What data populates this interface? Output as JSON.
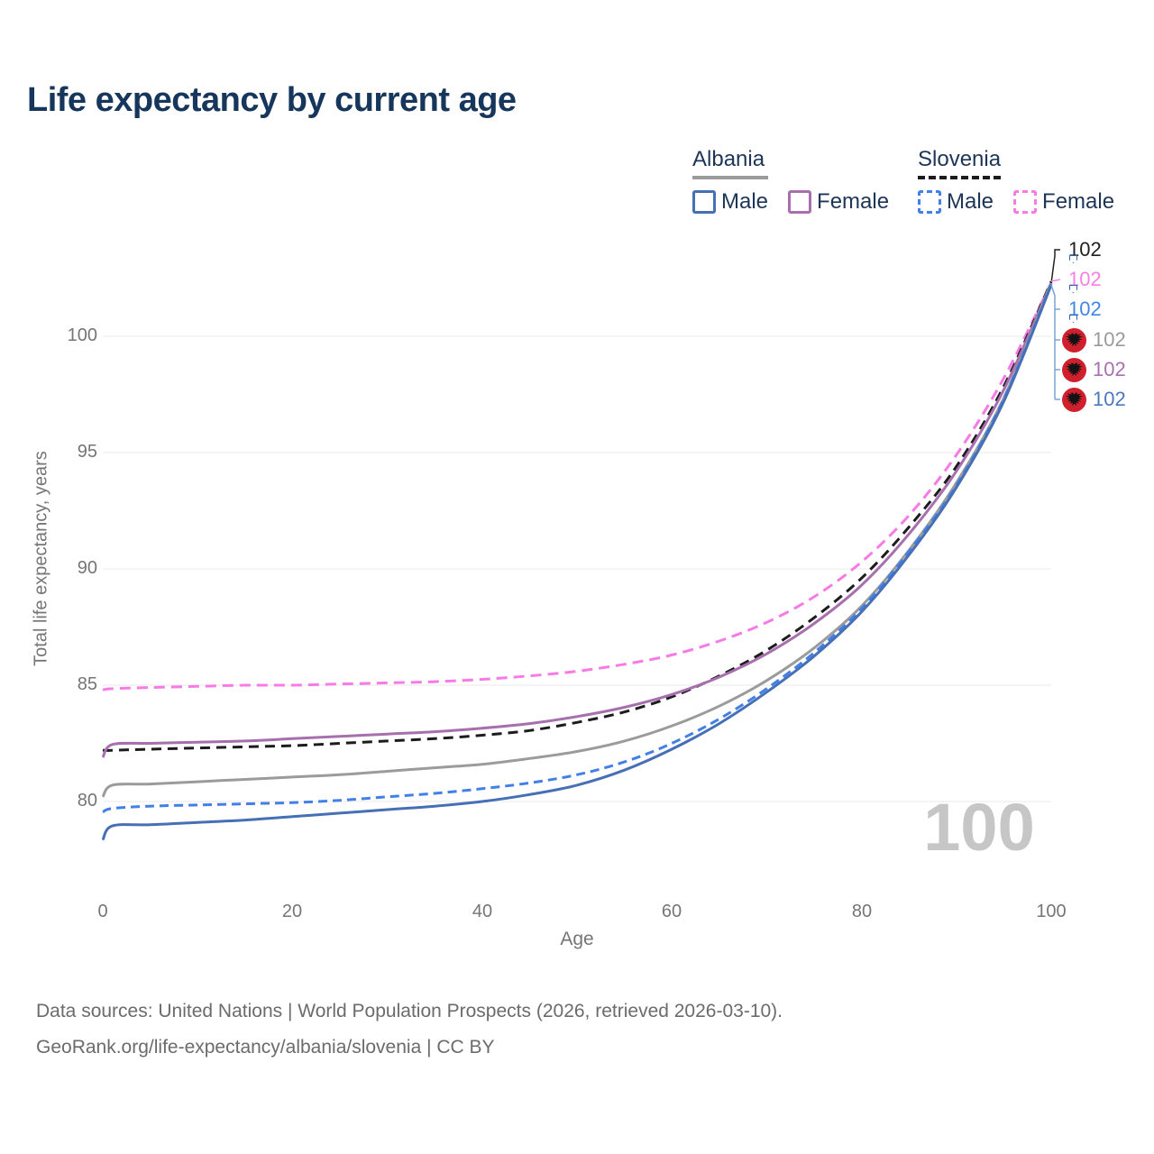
{
  "title": "Life expectancy by current age",
  "legend": {
    "albania": {
      "label": "Albania",
      "male_label": "Male",
      "female_label": "Female"
    },
    "slovenia": {
      "label": "Slovenia",
      "male_label": "Male",
      "female_label": "Female"
    }
  },
  "chart_data": {
    "type": "line",
    "title": "Life expectancy by current age",
    "xlabel": "Age",
    "ylabel": "Total life expectancy, years",
    "xlim": [
      0,
      100
    ],
    "ylim": [
      77.5,
      103.5
    ],
    "x_ticks": [
      0,
      20,
      40,
      60,
      80,
      100
    ],
    "y_ticks_top_to_bottom": [
      100,
      95,
      90,
      85,
      80
    ],
    "grid": "horizontal",
    "legend_position": "top-right",
    "watermark": "100",
    "ages": [
      0,
      1,
      5,
      10,
      15,
      20,
      25,
      30,
      35,
      40,
      45,
      50,
      55,
      60,
      65,
      70,
      75,
      80,
      85,
      90,
      95,
      100
    ],
    "series": [
      {
        "id": "slovenia-female",
        "country": "Slovenia",
        "sex": "Female",
        "style": "dashed",
        "color": "#f87ae6",
        "dash": "12 7",
        "values": [
          84.8,
          84.85,
          84.9,
          84.95,
          85.0,
          85.0,
          85.05,
          85.1,
          85.15,
          85.25,
          85.4,
          85.6,
          85.9,
          86.3,
          86.9,
          87.7,
          88.8,
          90.3,
          92.3,
          94.9,
          98.2,
          102.3
        ],
        "end_label": "102"
      },
      {
        "id": "slovenia-total",
        "country": "Slovenia",
        "sex": "Both",
        "style": "dashed",
        "color": "#1c1c1c",
        "dash": "11 7",
        "values": [
          82.2,
          82.2,
          82.25,
          82.3,
          82.35,
          82.4,
          82.5,
          82.6,
          82.7,
          82.85,
          83.05,
          83.4,
          83.85,
          84.5,
          85.4,
          86.5,
          87.9,
          89.6,
          91.8,
          94.4,
          97.85,
          102.35
        ],
        "end_label": "102"
      },
      {
        "id": "albania-female",
        "country": "Albania",
        "sex": "Female",
        "style": "solid",
        "color": "#a76fae",
        "dash": "",
        "values": [
          81.9,
          82.45,
          82.5,
          82.55,
          82.6,
          82.7,
          82.8,
          82.9,
          83.0,
          83.15,
          83.35,
          83.65,
          84.05,
          84.6,
          85.35,
          86.35,
          87.65,
          89.3,
          91.5,
          94.2,
          97.7,
          102.3
        ],
        "end_label": "102"
      },
      {
        "id": "albania-total",
        "country": "Albania",
        "sex": "Both",
        "style": "solid",
        "color": "#9b9b9b",
        "dash": "",
        "values": [
          80.2,
          80.7,
          80.75,
          80.85,
          80.95,
          81.05,
          81.15,
          81.3,
          81.45,
          81.6,
          81.85,
          82.15,
          82.6,
          83.25,
          84.1,
          85.2,
          86.6,
          88.4,
          90.8,
          93.7,
          97.35,
          102.3
        ],
        "end_label": "102"
      },
      {
        "id": "slovenia-male",
        "country": "Slovenia",
        "sex": "Male",
        "style": "dashed",
        "color": "#4280e8",
        "dash": "10 6",
        "values": [
          79.55,
          79.7,
          79.8,
          79.85,
          79.9,
          79.95,
          80.05,
          80.2,
          80.35,
          80.55,
          80.8,
          81.15,
          81.7,
          82.5,
          83.55,
          84.85,
          86.4,
          88.3,
          90.75,
          93.6,
          97.3,
          102.25
        ],
        "end_label": "102"
      },
      {
        "id": "albania-male",
        "country": "Albania",
        "sex": "Male",
        "style": "solid",
        "color": "#466fb5",
        "dash": "",
        "values": [
          78.35,
          78.95,
          79.0,
          79.1,
          79.2,
          79.35,
          79.5,
          79.65,
          79.8,
          80.0,
          80.3,
          80.7,
          81.35,
          82.25,
          83.35,
          84.7,
          86.25,
          88.15,
          90.6,
          93.5,
          97.2,
          102.2
        ],
        "end_label": "102"
      }
    ]
  },
  "end_labels": [
    {
      "value": "102",
      "color": "#1f1f1f",
      "flag": "slovenia-flag-icon",
      "series": "slovenia-total"
    },
    {
      "value": "102",
      "color": "#f77fe5",
      "flag": "slovenia-flag-icon",
      "series": "slovenia-female"
    },
    {
      "value": "102",
      "color": "#4285e8",
      "flag": "slovenia-flag-icon",
      "series": "slovenia-male"
    },
    {
      "value": "102",
      "color": "#9a9a9a",
      "flag": "albania-flag-icon",
      "series": "albania-total"
    },
    {
      "value": "102",
      "color": "#a96fae",
      "flag": "albania-flag-icon",
      "series": "albania-female"
    },
    {
      "value": "102",
      "color": "#4a77c0",
      "flag": "albania-flag-icon",
      "series": "albania-male"
    }
  ],
  "axis": {
    "y_tick_labels": [
      "100",
      "95",
      "90",
      "85",
      "80"
    ],
    "x_tick_labels": [
      "0",
      "20",
      "40",
      "60",
      "80",
      "100"
    ]
  },
  "footer": {
    "line1": "Data sources: United Nations | World Population Prospects (2026, retrieved 2026-03-10).",
    "line2": "GeoRank.org/life-expectancy/albania/slovenia | CC BY"
  }
}
